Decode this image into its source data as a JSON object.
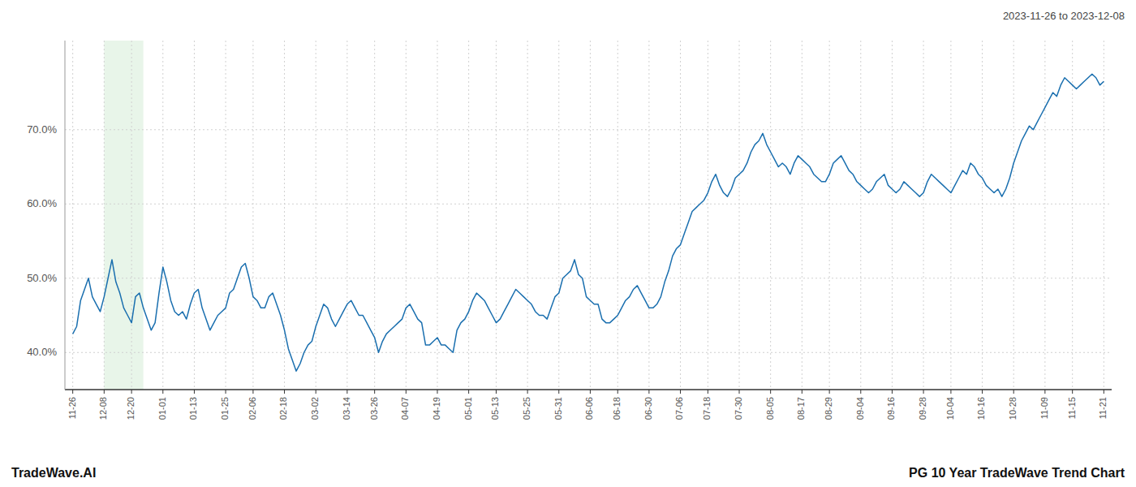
{
  "chart_data": {
    "type": "line",
    "title": "PG 10 Year TradeWave Trend Chart",
    "subtitle": "2023-11-26 to 2023-12-08",
    "annotations": [
      "TradeWave.AI"
    ],
    "color": "#1a6faf",
    "grid": true,
    "ylim": [
      35.0,
      82.0
    ],
    "yticks": [
      {
        "value": 40.0,
        "label": "40.0%"
      },
      {
        "value": 50.0,
        "label": "50.0%"
      },
      {
        "value": 60.0,
        "label": "60.0%"
      },
      {
        "value": 70.0,
        "label": "70.0%"
      }
    ],
    "highlight": {
      "start": 8,
      "end": 18,
      "color": "#e8f5e9"
    },
    "categories": [
      "11-26",
      null,
      null,
      null,
      null,
      null,
      null,
      null,
      "12-08",
      null,
      null,
      null,
      null,
      null,
      null,
      "12-20",
      null,
      null,
      null,
      null,
      null,
      null,
      null,
      "01-01",
      null,
      null,
      null,
      null,
      null,
      null,
      null,
      "01-13",
      null,
      null,
      null,
      null,
      null,
      null,
      null,
      "01-25",
      null,
      null,
      null,
      null,
      null,
      null,
      "02-06",
      null,
      null,
      null,
      null,
      null,
      null,
      null,
      "02-18",
      null,
      null,
      null,
      null,
      null,
      null,
      null,
      "03-02",
      null,
      null,
      null,
      null,
      null,
      null,
      null,
      "03-14",
      null,
      null,
      null,
      null,
      null,
      null,
      "03-26",
      null,
      null,
      null,
      null,
      null,
      null,
      null,
      "04-07",
      null,
      null,
      null,
      null,
      null,
      null,
      null,
      "04-19",
      null,
      null,
      null,
      null,
      null,
      null,
      null,
      "05-01",
      null,
      null,
      null,
      null,
      null,
      null,
      "05-13",
      null,
      null,
      null,
      null,
      null,
      null,
      null,
      "05-25",
      null,
      null,
      null,
      null,
      null,
      null,
      null,
      "05-31",
      null,
      null,
      null,
      null,
      null,
      null,
      null,
      "06-06",
      null,
      null,
      null,
      null,
      null,
      null,
      "06-18",
      null,
      null,
      null,
      null,
      null,
      null,
      null,
      "06-30",
      null,
      null,
      null,
      null,
      null,
      null,
      null,
      "07-06",
      null,
      null,
      null,
      null,
      null,
      null,
      "07-18",
      null,
      null,
      null,
      null,
      null,
      null,
      null,
      "07-30",
      null,
      null,
      null,
      null,
      null,
      null,
      null,
      "08-05",
      null,
      null,
      null,
      null,
      null,
      null,
      null,
      "08-17",
      null,
      null,
      null,
      null,
      null,
      null,
      "08-29",
      null,
      null,
      null,
      null,
      null,
      null,
      null,
      "09-04",
      null,
      null,
      null,
      null,
      null,
      null,
      null,
      "09-16",
      null,
      null,
      null,
      null,
      null,
      null,
      null,
      "09-28",
      null,
      null,
      null,
      null,
      null,
      null,
      "10-04",
      null,
      null,
      null,
      null,
      null,
      null,
      null,
      "10-16",
      null,
      null,
      null,
      null,
      null,
      null,
      null,
      "10-28",
      null,
      null,
      null,
      null,
      null,
      null,
      null,
      "11-09",
      null,
      null,
      null,
      null,
      null,
      null,
      "11-15",
      null,
      null,
      null,
      null,
      null,
      null,
      null,
      "11-21"
    ],
    "values": [
      42.5,
      43.5,
      47.0,
      48.5,
      50.0,
      47.5,
      46.5,
      45.5,
      47.5,
      50.0,
      52.5,
      49.5,
      48.0,
      46.0,
      45.0,
      44.0,
      47.5,
      48.0,
      46.0,
      44.5,
      43.0,
      44.0,
      48.0,
      51.5,
      49.5,
      47.0,
      45.5,
      45.0,
      45.5,
      44.5,
      46.5,
      48.0,
      48.5,
      46.0,
      44.5,
      43.0,
      44.0,
      45.0,
      45.5,
      46.0,
      48.0,
      48.5,
      50.0,
      51.5,
      52.0,
      50.0,
      47.5,
      47.0,
      46.0,
      46.0,
      47.5,
      48.0,
      46.5,
      45.0,
      43.0,
      40.5,
      39.0,
      37.5,
      38.5,
      40.0,
      41.0,
      41.5,
      43.5,
      45.0,
      46.5,
      46.0,
      44.5,
      43.5,
      44.5,
      45.5,
      46.5,
      47.0,
      46.0,
      45.0,
      45.0,
      44.0,
      43.0,
      42.0,
      40.0,
      41.5,
      42.5,
      43.0,
      43.5,
      44.0,
      44.5,
      46.0,
      46.5,
      45.5,
      44.5,
      44.0,
      41.0,
      41.0,
      41.5,
      42.0,
      41.0,
      41.0,
      40.5,
      40.0,
      43.0,
      44.0,
      44.5,
      45.5,
      47.0,
      48.0,
      47.5,
      47.0,
      46.0,
      45.0,
      44.0,
      44.5,
      45.5,
      46.5,
      47.5,
      48.5,
      48.0,
      47.5,
      47.0,
      46.5,
      45.5,
      45.0,
      45.0,
      44.5,
      46.0,
      47.5,
      48.0,
      50.0,
      50.5,
      51.0,
      52.5,
      50.5,
      50.0,
      47.5,
      47.0,
      46.5,
      46.5,
      44.5,
      44.0,
      44.0,
      44.5,
      45.0,
      46.0,
      47.0,
      47.5,
      48.5,
      49.0,
      48.0,
      47.0,
      46.0,
      46.0,
      46.5,
      47.5,
      49.5,
      51.0,
      53.0,
      54.0,
      54.5,
      56.0,
      57.5,
      59.0,
      59.5,
      60.0,
      60.5,
      61.5,
      63.0,
      64.0,
      62.5,
      61.5,
      61.0,
      62.0,
      63.5,
      64.0,
      64.5,
      65.5,
      67.0,
      68.0,
      68.5,
      69.5,
      68.0,
      67.0,
      66.0,
      65.0,
      65.5,
      65.0,
      64.0,
      65.5,
      66.5,
      66.0,
      65.5,
      65.0,
      64.0,
      63.5,
      63.0,
      63.0,
      64.0,
      65.5,
      66.0,
      66.5,
      65.5,
      64.5,
      64.0,
      63.0,
      62.5,
      62.0,
      61.5,
      62.0,
      63.0,
      63.5,
      64.0,
      62.5,
      62.0,
      61.5,
      62.0,
      63.0,
      62.5,
      62.0,
      61.5,
      61.0,
      61.5,
      63.0,
      64.0,
      63.5,
      63.0,
      62.5,
      62.0,
      61.5,
      62.5,
      63.5,
      64.5,
      64.0,
      65.5,
      65.0,
      64.0,
      63.5,
      62.5,
      62.0,
      61.5,
      62.0,
      61.0,
      62.0,
      63.5,
      65.5,
      67.0,
      68.5,
      69.5,
      70.5,
      70.0,
      71.0,
      72.0,
      73.0,
      74.0,
      75.0,
      74.5,
      76.0,
      77.0,
      76.5,
      76.0,
      75.5,
      76.0,
      76.5,
      77.0,
      77.5,
      77.0,
      76.0,
      76.5
    ]
  }
}
